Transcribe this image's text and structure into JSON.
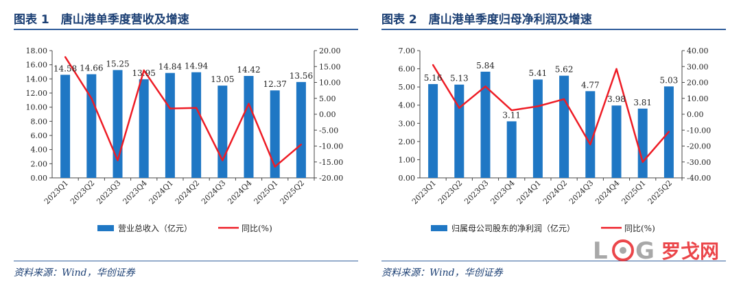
{
  "charts": [
    {
      "title": "图表 1　唐山港单季度营收及增速",
      "source": "资料来源：Wind，华创证券",
      "chart_data": {
        "type": "bar",
        "categories": [
          "2023Q1",
          "2023Q2",
          "2023Q3",
          "2023Q4",
          "2024Q1",
          "2024Q2",
          "2024Q3",
          "2024Q4",
          "2025Q1",
          "2025Q2"
        ],
        "series": [
          {
            "name": "营业总收入（亿元）",
            "type": "bar",
            "axis": "left",
            "values": [
              14.58,
              14.66,
              15.25,
              13.95,
              14.84,
              14.94,
              13.05,
              14.42,
              12.37,
              13.56
            ],
            "labels": [
              "14.58",
              "14.66",
              "15.25",
              "13.95",
              "14.84",
              "14.94",
              "13.05",
              "14.42",
              "12.37",
              "13.56"
            ]
          },
          {
            "name": "同比(%)",
            "type": "line",
            "axis": "right",
            "values": [
              18.0,
              5.0,
              -14.5,
              13.8,
              1.8,
              2.0,
              -14.5,
              3.3,
              -16.5,
              -9.5
            ]
          }
        ],
        "yleft": {
          "min": 0,
          "max": 18,
          "step": 2,
          "ticks": [
            "0.00",
            "2.00",
            "4.00",
            "6.00",
            "8.00",
            "10.00",
            "12.00",
            "14.00",
            "16.00",
            "18.00"
          ]
        },
        "yright": {
          "min": -20,
          "max": 20,
          "step": 5,
          "ticks": [
            "-20.00",
            "-15.00",
            "-10.00",
            "-5.00",
            "0.00",
            "5.00",
            "10.00",
            "15.00",
            "20.00"
          ]
        },
        "legend_position": "bottom",
        "bar_color": "#1f77c4",
        "line_color": "#ee1c25"
      }
    },
    {
      "title": "图表 2　唐山港单季度归母净利润及增速",
      "source": "资料来源：Wind，华创证券",
      "chart_data": {
        "type": "bar",
        "categories": [
          "2023Q1",
          "2023Q2",
          "2023Q3",
          "2023Q4",
          "2024Q1",
          "2024Q2",
          "2024Q3",
          "2024Q4",
          "2025Q1",
          "2025Q2"
        ],
        "series": [
          {
            "name": "归属母公司股东的净利润（亿元）",
            "type": "bar",
            "axis": "left",
            "values": [
              5.16,
              5.13,
              5.84,
              3.11,
              5.41,
              5.62,
              4.77,
              3.98,
              3.81,
              5.03
            ],
            "labels": [
              "5.16",
              "5.13",
              "5.84",
              "3.11",
              "5.41",
              "5.62",
              "4.77",
              "3.98",
              "3.81",
              "5.03"
            ]
          },
          {
            "name": "同比(%)",
            "type": "line",
            "axis": "right",
            "values": [
              31.0,
              4.0,
              17.5,
              2.5,
              5.0,
              9.5,
              -19.0,
              28.5,
              -30.0,
              -11.0
            ]
          }
        ],
        "yleft": {
          "min": 0,
          "max": 7,
          "step": 1,
          "ticks": [
            "0.00",
            "1.00",
            "2.00",
            "3.00",
            "4.00",
            "5.00",
            "6.00",
            "7.00"
          ]
        },
        "yright": {
          "min": -40,
          "max": 40,
          "step": 10,
          "ticks": [
            "-40.00",
            "-30.00",
            "-20.00",
            "-10.00",
            "0.00",
            "10.00",
            "20.00",
            "30.00",
            "40.00"
          ]
        },
        "legend_position": "bottom",
        "bar_color": "#1f77c4",
        "line_color": "#ee1c25"
      }
    }
  ],
  "watermark": {
    "text": "罗戈网",
    "letters": [
      "L",
      "G"
    ],
    "red": "#e8262b",
    "gray": "#9a9a9a"
  }
}
